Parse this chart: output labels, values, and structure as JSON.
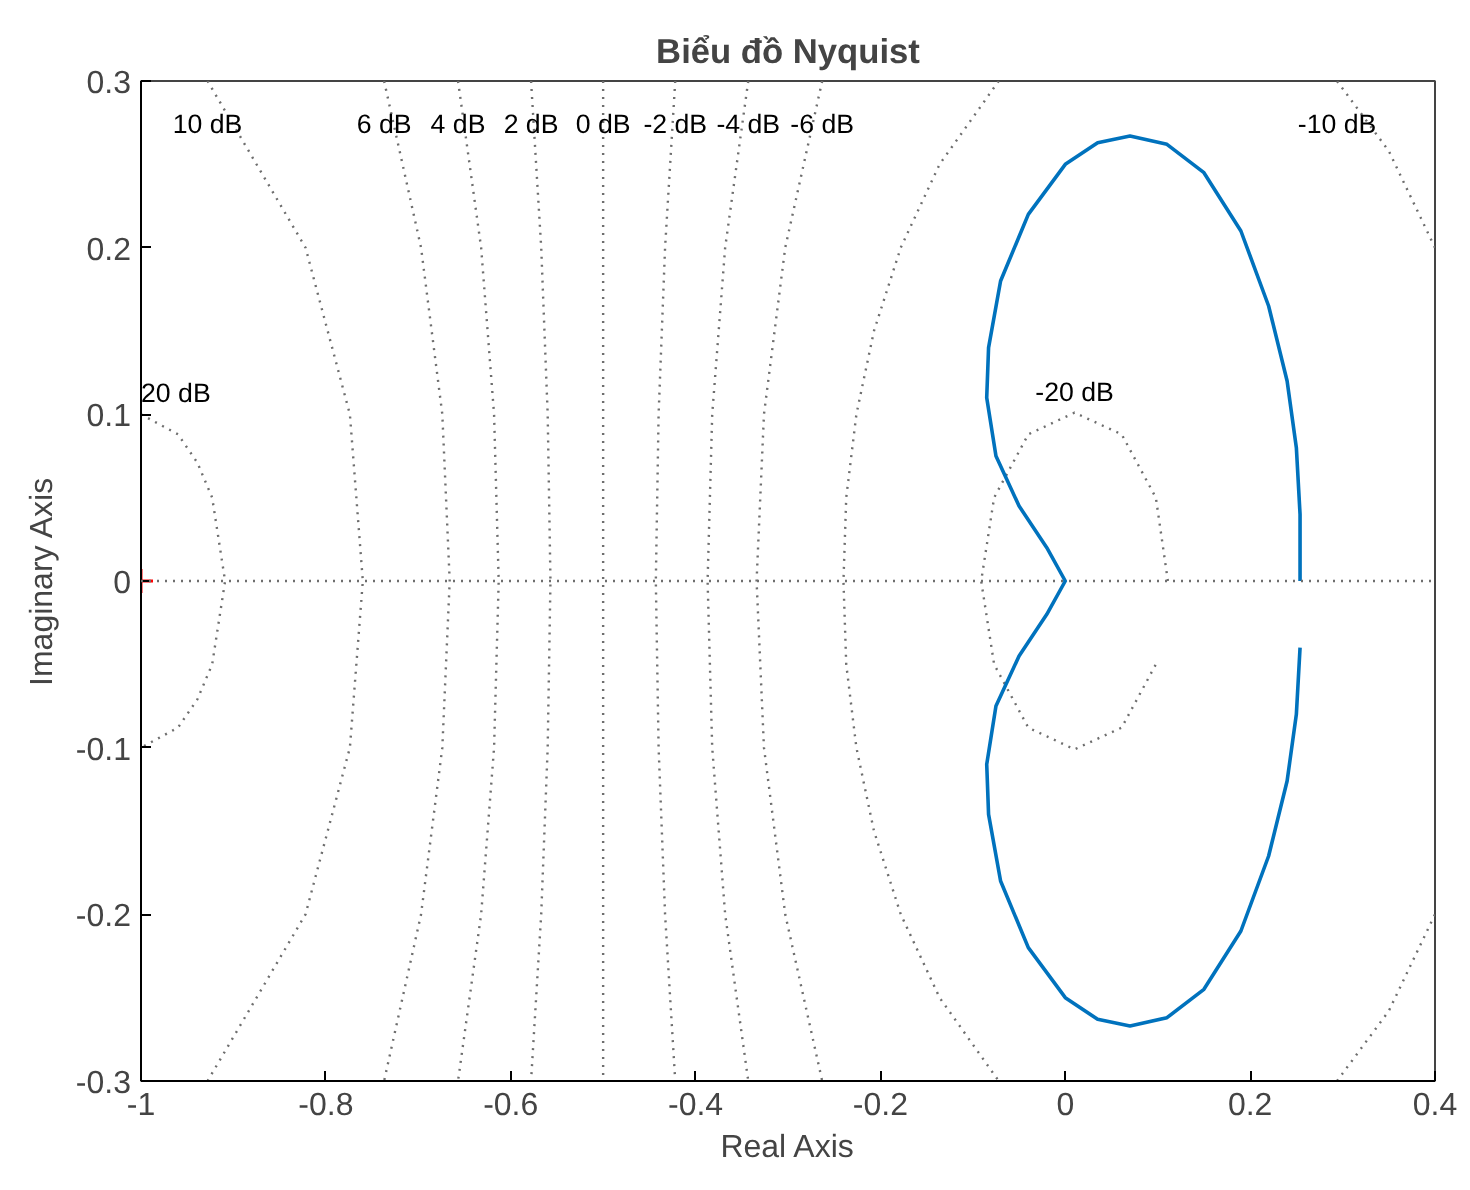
{
  "chart_data": {
    "type": "line",
    "title": "Biểu đồ Nyquist",
    "xlabel": "Real Axis",
    "ylabel": "Imaginary Axis",
    "xlim": [
      -1,
      0.4
    ],
    "ylim": [
      -0.3,
      0.3
    ],
    "xticks": [
      -1,
      -0.8,
      -0.6,
      -0.4,
      -0.2,
      0,
      0.2,
      0.4
    ],
    "yticks": [
      -0.3,
      -0.2,
      -0.1,
      0,
      0.1,
      0.2,
      0.3
    ],
    "series": [
      {
        "name": "20 dB",
        "color": "#6e6e6e",
        "line_style": "dotted",
        "x": [
          -1.0,
          -0.96,
          -0.939,
          -0.923,
          -0.909,
          -0.923,
          -0.939,
          -0.96,
          -1.0
        ],
        "values": [
          0.1,
          0.088,
          0.071,
          0.05,
          0,
          -0.05,
          -0.071,
          -0.088,
          -0.1
        ]
      },
      {
        "name": "10 dB",
        "color": "#6e6e6e",
        "line_style": "dotted",
        "x": [
          -0.928,
          -0.822,
          -0.774,
          -0.76,
          -0.774,
          -0.822,
          -0.928
        ],
        "values": [
          0.3,
          0.2,
          0.1,
          0,
          -0.1,
          -0.2,
          -0.3
        ]
      },
      {
        "name": "6 dB",
        "color": "#6e6e6e",
        "line_style": "dotted",
        "x": [
          -0.737,
          -0.697,
          -0.674,
          -0.666,
          -0.674,
          -0.697,
          -0.737
        ],
        "values": [
          0.3,
          0.2,
          0.1,
          0,
          -0.1,
          -0.2,
          -0.3
        ]
      },
      {
        "name": "4 dB",
        "color": "#6e6e6e",
        "line_style": "dotted",
        "x": [
          -0.657,
          -0.632,
          -0.618,
          -0.613,
          -0.618,
          -0.632,
          -0.657
        ],
        "values": [
          0.3,
          0.2,
          0.1,
          0,
          -0.1,
          -0.2,
          -0.3
        ]
      },
      {
        "name": "2 dB",
        "color": "#6e6e6e",
        "line_style": "dotted",
        "x": [
          -0.578,
          -0.567,
          -0.56,
          -0.557,
          -0.56,
          -0.567,
          -0.578
        ],
        "values": [
          0.3,
          0.2,
          0.1,
          0,
          -0.1,
          -0.2,
          -0.3
        ]
      },
      {
        "name": "0 dB",
        "color": "#6e6e6e",
        "line_style": "dotted",
        "x": [
          -0.5,
          -0.5
        ],
        "values": [
          0.3,
          -0.3
        ]
      },
      {
        "name": "-2 dB",
        "color": "#6e6e6e",
        "line_style": "dotted",
        "x": [
          -0.422,
          -0.433,
          -0.44,
          -0.443,
          -0.44,
          -0.433,
          -0.422
        ],
        "values": [
          0.3,
          0.2,
          0.1,
          0,
          -0.1,
          -0.2,
          -0.3
        ]
      },
      {
        "name": "-4 dB",
        "color": "#6e6e6e",
        "line_style": "dotted",
        "x": [
          -0.343,
          -0.368,
          -0.382,
          -0.387,
          -0.382,
          -0.368,
          -0.343
        ],
        "values": [
          0.3,
          0.2,
          0.1,
          0,
          -0.1,
          -0.2,
          -0.3
        ]
      },
      {
        "name": "-6 dB",
        "color": "#6e6e6e",
        "line_style": "dotted",
        "x": [
          -0.263,
          -0.303,
          -0.326,
          -0.334,
          -0.326,
          -0.303,
          -0.263
        ],
        "values": [
          0.3,
          0.2,
          0.1,
          0,
          -0.1,
          -0.2,
          -0.3
        ]
      },
      {
        "name": "-10 dB",
        "color": "#6e6e6e",
        "line_style": "dotted",
        "x": [
          0.4,
          0.35,
          0.294,
          null,
          -0.072,
          -0.136,
          -0.178,
          -0.207,
          -0.226,
          -0.237,
          -0.24,
          -0.237,
          -0.226,
          -0.207,
          -0.178,
          -0.136,
          -0.072,
          null,
          0.294,
          0.35,
          0.4
        ],
        "values": [
          0.2,
          0.258,
          0.3,
          null,
          0.3,
          0.25,
          0.2,
          0.15,
          0.1,
          0.05,
          0,
          -0.05,
          -0.1,
          -0.15,
          -0.2,
          -0.25,
          -0.3,
          null,
          -0.3,
          -0.258,
          -0.2
        ]
      },
      {
        "name": "-20 dB",
        "color": "#6e6e6e",
        "line_style": "dotted",
        "x": [
          0.111,
          0.098,
          0.061,
          0.01,
          -0.04,
          -0.077,
          -0.091,
          -0.077,
          -0.04,
          0.01,
          0.061,
          0.098
        ],
        "values": [
          0,
          0.05,
          0.088,
          0.101,
          0.088,
          0.05,
          0,
          -0.05,
          -0.088,
          -0.101,
          -0.088,
          -0.05
        ]
      },
      {
        "color": "#0072bd",
        "line_style": "solid",
        "x": [
          0.254,
          0.254,
          0.25,
          0.24,
          0.22,
          0.19,
          0.15,
          0.11,
          0.07,
          0.035,
          0,
          -0.04,
          -0.07,
          -0.083,
          -0.085,
          -0.075,
          -0.05,
          -0.02,
          0,
          -0.02,
          -0.05,
          -0.075,
          -0.085,
          -0.083,
          -0.07,
          -0.04,
          0,
          0.035,
          0.07,
          0.11,
          0.15,
          0.19,
          0.22,
          0.24,
          0.25,
          0.254
        ],
        "values": [
          0,
          0.04,
          0.08,
          0.12,
          0.165,
          0.21,
          0.245,
          0.262,
          0.267,
          0.263,
          0.25,
          0.22,
          0.18,
          0.14,
          0.11,
          0.075,
          0.045,
          0.02,
          0,
          -0.02,
          -0.045,
          -0.075,
          -0.11,
          -0.14,
          -0.18,
          -0.22,
          -0.25,
          -0.263,
          -0.267,
          -0.262,
          -0.245,
          -0.21,
          -0.165,
          -0.12,
          -0.08,
          -0.04
        ]
      },
      {
        "type": "scatter",
        "marker": "cross",
        "color": "#ff0000",
        "x": [
          -1
        ],
        "values": [
          0
        ]
      }
    ],
    "ref_lines": [
      {
        "axis": "y",
        "value": 0,
        "color": "#6e6e6e",
        "line_style": "dotted"
      }
    ]
  }
}
